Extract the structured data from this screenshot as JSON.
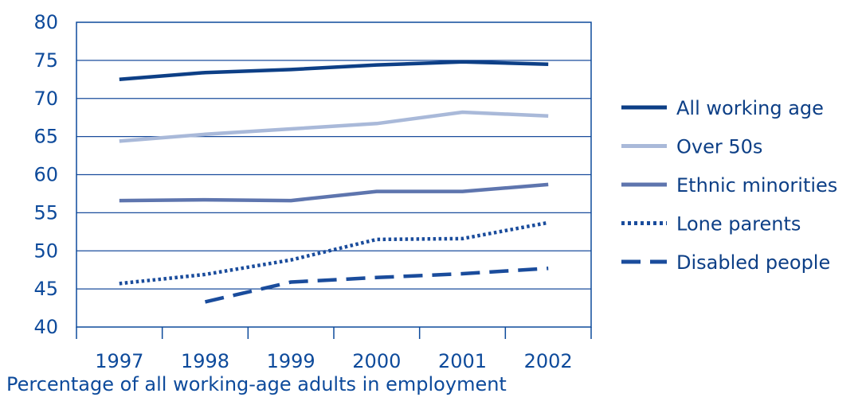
{
  "chart_data": {
    "type": "line",
    "xlabel": "Percentage of all working-age adults in employment",
    "ylabel": "",
    "ylim": [
      40,
      80
    ],
    "yticks": [
      40,
      45,
      50,
      55,
      60,
      65,
      70,
      75,
      80
    ],
    "categories": [
      "1997",
      "1998",
      "1999",
      "2000",
      "2001",
      "2002"
    ],
    "grid": true,
    "legend_position": "right",
    "series": [
      {
        "name": "All working age",
        "color": "#0d3f86",
        "style": "solid",
        "values": [
          72.5,
          73.4,
          73.8,
          74.4,
          74.8,
          74.5
        ]
      },
      {
        "name": "Over 50s",
        "color": "#a9b9d9",
        "style": "solid",
        "values": [
          64.4,
          65.3,
          66.0,
          66.7,
          68.2,
          67.7
        ]
      },
      {
        "name": "Ethnic minorities",
        "color": "#5e75ae",
        "style": "solid",
        "values": [
          56.6,
          56.7,
          56.6,
          57.8,
          57.8,
          58.7
        ]
      },
      {
        "name": "Lone parents",
        "color": "#1a4c9c",
        "style": "dotted",
        "values": [
          45.7,
          46.9,
          48.8,
          51.5,
          51.6,
          53.7
        ]
      },
      {
        "name": "Disabled people",
        "color": "#1a4c9c",
        "style": "dashed",
        "values": [
          null,
          43.3,
          45.9,
          46.5,
          47.0,
          47.7
        ]
      }
    ]
  }
}
